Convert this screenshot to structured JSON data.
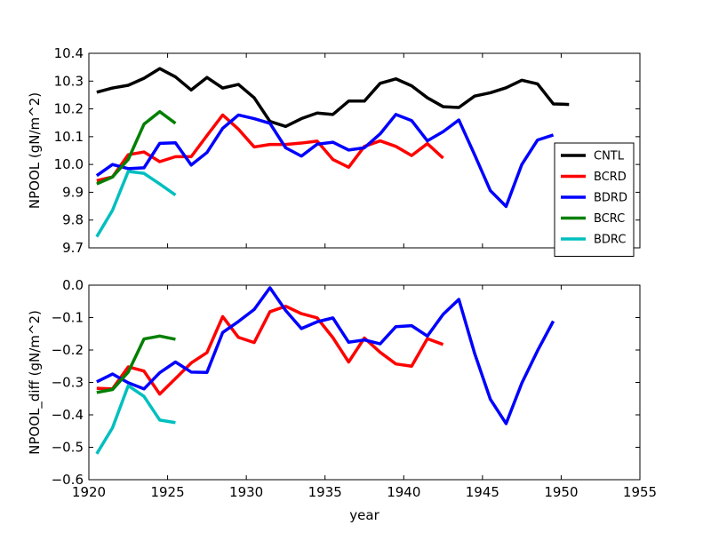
{
  "chart_data": [
    {
      "type": "line",
      "xlabel": "",
      "ylabel": "NPOOL (gN/m^2)",
      "xlim": [
        1920,
        1955
      ],
      "ylim": [
        9.7,
        10.4
      ],
      "xticks": [
        1920,
        1925,
        1930,
        1935,
        1940,
        1945,
        1950,
        1955
      ],
      "xtick_labels": [
        "",
        "",
        "",
        "",
        "",
        "",
        "",
        ""
      ],
      "yticks": [
        9.7,
        9.8,
        9.9,
        10.0,
        10.1,
        10.2,
        10.3,
        10.4
      ],
      "ytick_labels": [
        "9.7",
        "9.8",
        "9.9",
        "10.0",
        "10.1",
        "10.2",
        "10.3",
        "10.4"
      ],
      "grid": false,
      "legend": "center-right",
      "series": [
        {
          "name": "CNTL",
          "color": "#000000",
          "x": [
            1920.5,
            1921.5,
            1922.5,
            1923.5,
            1924.5,
            1925.5,
            1926.5,
            1927.5,
            1928.5,
            1929.5,
            1930.5,
            1931.5,
            1932.5,
            1933.5,
            1934.5,
            1935.5,
            1936.5,
            1937.5,
            1938.5,
            1939.5,
            1940.5,
            1941.5,
            1942.5,
            1943.5,
            1944.5,
            1945.5,
            1946.5,
            1947.5,
            1948.5,
            1949.5,
            1950.5
          ],
          "y": [
            10.26,
            10.275,
            10.285,
            10.31,
            10.345,
            10.315,
            10.268,
            10.313,
            10.275,
            10.288,
            10.24,
            10.155,
            10.137,
            10.165,
            10.185,
            10.18,
            10.228,
            10.228,
            10.292,
            10.308,
            10.283,
            10.24,
            10.208,
            10.205,
            10.246,
            10.258,
            10.276,
            10.303,
            10.29,
            10.218,
            10.216
          ]
        },
        {
          "name": "BCRD",
          "color": "#ff0000",
          "x": [
            1920.5,
            1921.5,
            1922.5,
            1923.5,
            1924.5,
            1925.5,
            1926.5,
            1927.5,
            1928.5,
            1929.5,
            1930.5,
            1931.5,
            1932.5,
            1933.5,
            1934.5,
            1935.5,
            1936.5,
            1937.5,
            1938.5,
            1939.5,
            1940.5,
            1941.5,
            1942.5
          ],
          "y": [
            9.942,
            9.955,
            10.035,
            10.045,
            10.01,
            10.028,
            10.028,
            10.104,
            10.178,
            10.127,
            10.063,
            10.072,
            10.072,
            10.077,
            10.084,
            10.018,
            9.99,
            10.065,
            10.085,
            10.065,
            10.032,
            10.075,
            10.023
          ]
        },
        {
          "name": "BDRD",
          "color": "#0000ff",
          "x": [
            1920.5,
            1921.5,
            1922.5,
            1923.5,
            1924.5,
            1925.5,
            1926.5,
            1927.5,
            1928.5,
            1929.5,
            1930.5,
            1931.5,
            1932.5,
            1933.5,
            1934.5,
            1935.5,
            1936.5,
            1937.5,
            1938.5,
            1939.5,
            1940.5,
            1941.5,
            1942.5,
            1943.5,
            1944.5,
            1945.5,
            1946.5,
            1947.5,
            1948.5,
            1949.5
          ],
          "y": [
            9.96,
            10.0,
            9.985,
            9.988,
            10.076,
            10.078,
            9.998,
            10.043,
            10.13,
            10.178,
            10.165,
            10.148,
            10.06,
            10.03,
            10.073,
            10.08,
            10.052,
            10.06,
            10.11,
            10.18,
            10.158,
            10.085,
            10.118,
            10.16,
            10.035,
            9.906,
            9.849,
            10.0,
            10.088,
            10.106
          ]
        },
        {
          "name": "BCRC",
          "color": "#008000",
          "x": [
            1920.5,
            1921.5,
            1922.5,
            1923.5,
            1924.5,
            1925.5
          ],
          "y": [
            9.93,
            9.955,
            10.018,
            10.145,
            10.19,
            10.148
          ]
        },
        {
          "name": "BDRC",
          "color": "#00bfbf",
          "x": [
            1920.5,
            1921.5,
            1922.5,
            1923.5,
            1924.5,
            1925.5
          ],
          "y": [
            9.74,
            9.835,
            9.975,
            9.968,
            9.93,
            9.89
          ]
        }
      ]
    },
    {
      "type": "line",
      "xlabel": "year",
      "ylabel": "NPOOL_diff (gN/m^2)",
      "xlim": [
        1920,
        1955
      ],
      "ylim": [
        -0.6,
        0.0
      ],
      "xticks": [
        1920,
        1925,
        1930,
        1935,
        1940,
        1945,
        1950,
        1955
      ],
      "xtick_labels": [
        "1920",
        "1925",
        "1930",
        "1935",
        "1940",
        "1945",
        "1950",
        "1955"
      ],
      "yticks": [
        -0.6,
        -0.5,
        -0.4,
        -0.3,
        -0.2,
        -0.1,
        0.0
      ],
      "ytick_labels": [
        "−0.6",
        "−0.5",
        "−0.4",
        "−0.3",
        "−0.2",
        "−0.1",
        "0.0"
      ],
      "grid": false,
      "legend": "none",
      "series": [
        {
          "name": "BCRD",
          "color": "#ff0000",
          "x": [
            1920.5,
            1921.5,
            1922.5,
            1923.5,
            1924.5,
            1925.5,
            1926.5,
            1927.5,
            1928.5,
            1929.5,
            1930.5,
            1931.5,
            1932.5,
            1933.5,
            1934.5,
            1935.5,
            1936.5,
            1937.5,
            1938.5,
            1939.5,
            1940.5,
            1941.5,
            1942.5
          ],
          "y": [
            -0.318,
            -0.32,
            -0.252,
            -0.265,
            -0.336,
            -0.288,
            -0.24,
            -0.208,
            -0.097,
            -0.161,
            -0.177,
            -0.082,
            -0.065,
            -0.088,
            -0.101,
            -0.162,
            -0.237,
            -0.163,
            -0.207,
            -0.243,
            -0.25,
            -0.165,
            -0.183
          ]
        },
        {
          "name": "BDRD",
          "color": "#0000ff",
          "x": [
            1920.5,
            1921.5,
            1922.5,
            1923.5,
            1924.5,
            1925.5,
            1926.5,
            1927.5,
            1928.5,
            1929.5,
            1930.5,
            1931.5,
            1932.5,
            1933.5,
            1934.5,
            1935.5,
            1936.5,
            1937.5,
            1938.5,
            1939.5,
            1940.5,
            1941.5,
            1942.5,
            1943.5,
            1944.5,
            1945.5,
            1946.5,
            1947.5,
            1948.5,
            1949.5
          ],
          "y": [
            -0.298,
            -0.274,
            -0.301,
            -0.32,
            -0.27,
            -0.237,
            -0.268,
            -0.269,
            -0.146,
            -0.112,
            -0.075,
            -0.008,
            -0.078,
            -0.134,
            -0.113,
            -0.101,
            -0.176,
            -0.169,
            -0.181,
            -0.128,
            -0.125,
            -0.157,
            -0.09,
            -0.044,
            -0.21,
            -0.352,
            -0.427,
            -0.302,
            -0.202,
            -0.111
          ]
        },
        {
          "name": "BCRC",
          "color": "#008000",
          "x": [
            1920.5,
            1921.5,
            1922.5,
            1923.5,
            1924.5,
            1925.5
          ],
          "y": [
            -0.331,
            -0.322,
            -0.268,
            -0.166,
            -0.157,
            -0.167
          ]
        },
        {
          "name": "BDRC",
          "color": "#00bfbf",
          "x": [
            1920.5,
            1921.5,
            1922.5,
            1923.5,
            1924.5,
            1925.5
          ],
          "y": [
            -0.52,
            -0.44,
            -0.31,
            -0.343,
            -0.416,
            -0.424
          ]
        }
      ]
    }
  ]
}
